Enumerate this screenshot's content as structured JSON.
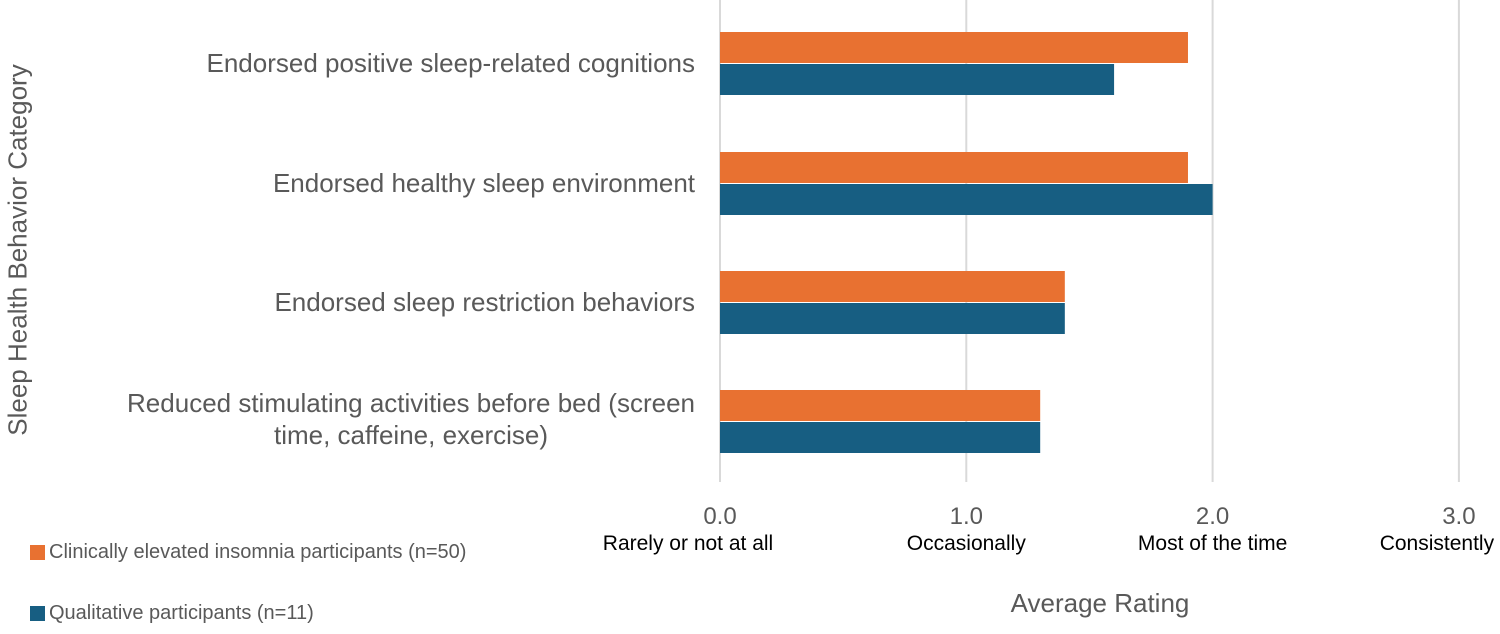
{
  "chart_data": {
    "type": "bar",
    "orientation": "horizontal",
    "categories": [
      "Endorsed positive sleep-related cognitions",
      "Endorsed healthy sleep environment",
      "Endorsed sleep restriction behaviors",
      "Reduced stimulating activities before bed (screen time, caffeine, exercise)"
    ],
    "category_lines": [
      [
        "Endorsed positive sleep-related cognitions"
      ],
      [
        "Endorsed healthy sleep environment"
      ],
      [
        "Endorsed sleep restriction behaviors"
      ],
      [
        "Reduced stimulating activities before bed (screen",
        "time, caffeine, exercise)"
      ]
    ],
    "series": [
      {
        "name": "Clinically elevated insomnia participants (n=50)",
        "color": "#E87131",
        "values": [
          1.9,
          1.9,
          1.4,
          1.3
        ]
      },
      {
        "name": "Qualitative participants (n=11)",
        "color": "#175E82",
        "values": [
          1.6,
          2.0,
          1.4,
          1.3
        ]
      }
    ],
    "xlim": [
      0,
      3
    ],
    "x_ticks": [
      {
        "value": "0.0",
        "label": "Rarely or not at all"
      },
      {
        "value": "1.0",
        "label": "Occasionally"
      },
      {
        "value": "2.0",
        "label": "Most of the time"
      },
      {
        "value": "3.0",
        "label": "Consistently"
      }
    ],
    "xlabel": "Average Rating",
    "ylabel": "Sleep Health Behavior Category",
    "grid": "vertical",
    "legend": "bottom-left"
  }
}
